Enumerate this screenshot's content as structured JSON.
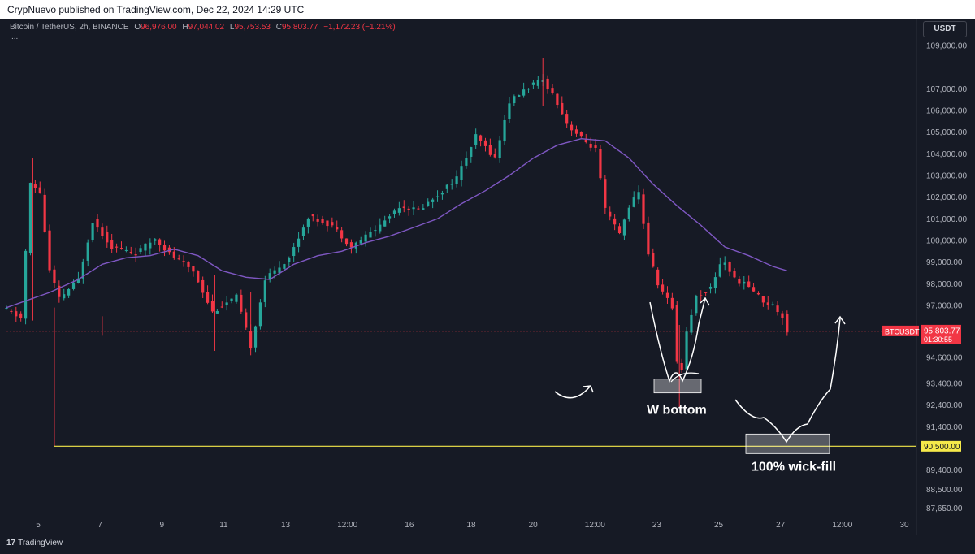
{
  "header": {
    "published_text": "CrypNuevo published on TradingView.com, Dec 22, 2024 14:29 UTC"
  },
  "legend": {
    "symbol": "Bitcoin / TetherUS, 2h, BINANCE",
    "open_label": "O",
    "open": "96,976.00",
    "high_label": "H",
    "high": "97,044.02",
    "low_label": "L",
    "low": "95,753.53",
    "close_label": "C",
    "close": "95,803.77",
    "change": "−1,172.23 (−1.21%)",
    "more": "..."
  },
  "currency_button": "USDT",
  "footer": {
    "brand": "TradingView",
    "logo_glyph": "17"
  },
  "colors": {
    "up": "#26a69a",
    "down": "#f23645",
    "ma": "#7e57c2",
    "support": "#f5e94a",
    "background": "#161a25",
    "annotation": "#ffffff"
  },
  "chart_data": {
    "type": "candlestick",
    "x_tick_labels": [
      "5",
      "7",
      "9",
      "11",
      "13",
      "12:00",
      "16",
      "18",
      "20",
      "12:00",
      "23",
      "25",
      "27",
      "12:00",
      "30"
    ],
    "y_tick_labels": [
      "109,000.00",
      "107,000.00",
      "106,000.00",
      "105,000.00",
      "104,000.00",
      "103,000.00",
      "102,000.00",
      "101,000.00",
      "100,000.00",
      "99,000.00",
      "98,000.00",
      "97,000.00",
      "94,600.00",
      "93,400.00",
      "92,400.00",
      "91,400.00",
      "89,400.00",
      "88,500.00",
      "87,650.00"
    ],
    "ylim": [
      87400,
      110200
    ],
    "grid": false,
    "current_price": {
      "symbol": "BTCUSDT",
      "price": 95803.77,
      "price_label": "95,803.77",
      "countdown": "01:30:55"
    },
    "support_line": {
      "value": 90500,
      "label": "90,500.00"
    },
    "price_path": [
      [
        0,
        96800
      ],
      [
        0.6,
        96400
      ],
      [
        1.0,
        102600
      ],
      [
        1.4,
        102200
      ],
      [
        1.8,
        98600
      ],
      [
        2.2,
        97300
      ],
      [
        3.0,
        98200
      ],
      [
        3.6,
        100900
      ],
      [
        4.4,
        99700
      ],
      [
        5.4,
        99400
      ],
      [
        6.2,
        100100
      ],
      [
        6.8,
        99400
      ],
      [
        7.8,
        98600
      ],
      [
        8.6,
        96700
      ],
      [
        9.6,
        97400
      ],
      [
        10.2,
        95100
      ],
      [
        10.8,
        98200
      ],
      [
        11.8,
        99200
      ],
      [
        12.6,
        101100
      ],
      [
        13.6,
        100700
      ],
      [
        14.4,
        99700
      ],
      [
        15.6,
        100700
      ],
      [
        16.4,
        101600
      ],
      [
        17.2,
        101400
      ],
      [
        18.0,
        102100
      ],
      [
        18.8,
        102900
      ],
      [
        19.6,
        104800
      ],
      [
        20.4,
        103800
      ],
      [
        21.0,
        106400
      ],
      [
        21.8,
        107100
      ],
      [
        22.4,
        107400
      ],
      [
        22.9,
        106600
      ],
      [
        23.4,
        105400
      ],
      [
        24.0,
        104700
      ],
      [
        24.6,
        104200
      ],
      [
        25.0,
        101400
      ],
      [
        25.6,
        100300
      ],
      [
        26.0,
        101600
      ],
      [
        26.4,
        102200
      ],
      [
        26.8,
        99400
      ],
      [
        27.2,
        98000
      ],
      [
        27.8,
        96900
      ],
      [
        28.1,
        93200
      ],
      [
        28.4,
        95800
      ],
      [
        28.8,
        97400
      ],
      [
        29.4,
        97800
      ],
      [
        29.9,
        99200
      ],
      [
        30.4,
        98200
      ],
      [
        31.0,
        97900
      ],
      [
        31.6,
        97200
      ],
      [
        32.0,
        97000
      ],
      [
        32.4,
        96500
      ],
      [
        32.6,
        95803.77
      ]
    ],
    "moving_average": [
      [
        0,
        96900
      ],
      [
        1.8,
        97600
      ],
      [
        3.0,
        98200
      ],
      [
        4.0,
        98900
      ],
      [
        5.0,
        99200
      ],
      [
        6.0,
        99300
      ],
      [
        7.0,
        99600
      ],
      [
        8.0,
        99300
      ],
      [
        9.0,
        98600
      ],
      [
        10.0,
        98300
      ],
      [
        11.0,
        98200
      ],
      [
        12.0,
        98900
      ],
      [
        13.0,
        99300
      ],
      [
        14.0,
        99500
      ],
      [
        15.0,
        99900
      ],
      [
        16.0,
        100200
      ],
      [
        17.0,
        100600
      ],
      [
        18.0,
        101000
      ],
      [
        19.0,
        101700
      ],
      [
        20.0,
        102300
      ],
      [
        21.0,
        103000
      ],
      [
        22.0,
        103800
      ],
      [
        23.0,
        104400
      ],
      [
        24.0,
        104700
      ],
      [
        25.0,
        104600
      ],
      [
        26.0,
        103800
      ],
      [
        27.0,
        102600
      ],
      [
        28.0,
        101600
      ],
      [
        29.0,
        100700
      ],
      [
        30.0,
        99700
      ],
      [
        31.0,
        99300
      ],
      [
        32.0,
        98800
      ],
      [
        32.6,
        98600
      ]
    ],
    "annotations": [
      {
        "text": "W bottom",
        "target_price": 93300,
        "shape": "w-pattern"
      },
      {
        "text": "100% wick-fill",
        "target_price": 90500,
        "shape": "wick-fill-projection"
      }
    ]
  }
}
